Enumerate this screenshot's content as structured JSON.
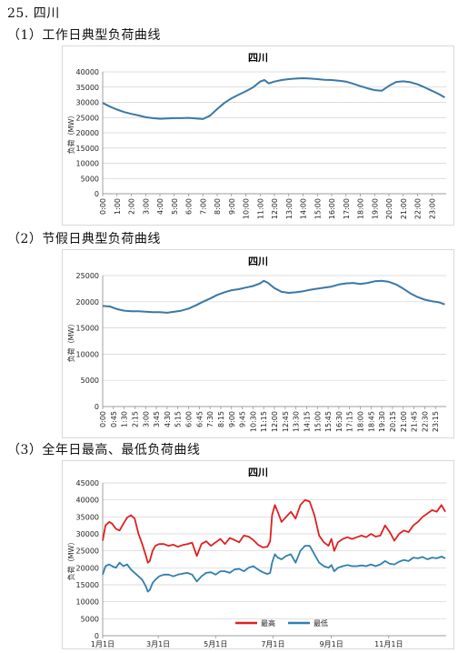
{
  "doc": {
    "section_title": "25.  四川",
    "sub1": "（1）工作日典型负荷曲线",
    "sub2": "（2）节假日典型负荷曲线",
    "sub3": "（3）全年日最高、最低负荷曲线"
  },
  "chart_data": [
    {
      "type": "line",
      "title": "四川",
      "ylabel": "负荷（MW）",
      "ylim": [
        0,
        40000
      ],
      "yticks": [
        0,
        5000,
        10000,
        15000,
        20000,
        25000,
        30000,
        35000,
        40000
      ],
      "categories": [
        "0:00",
        "1:00",
        "2:00",
        "3:00",
        "4:00",
        "5:00",
        "6:00",
        "7:00",
        "8:00",
        "9:00",
        "10:00",
        "11:00",
        "12:00",
        "13:00",
        "14:00",
        "15:00",
        "16:00",
        "17:00",
        "18:00",
        "19:00",
        "20:00",
        "21:00",
        "22:00",
        "23:00"
      ],
      "series": [
        {
          "color": "#3a78a8",
          "x": [
            0,
            0.5,
            1,
            1.5,
            2,
            2.5,
            3,
            3.5,
            4,
            4.5,
            5,
            5.5,
            6,
            6.5,
            7,
            7.5,
            8,
            8.5,
            9,
            9.5,
            10,
            10.5,
            11,
            11.3,
            11.6,
            12,
            12.5,
            13,
            13.5,
            14,
            14.5,
            15,
            15.5,
            16,
            16.5,
            17,
            17.5,
            18,
            18.5,
            19,
            19.5,
            20,
            20.5,
            21,
            21.5,
            22,
            22.5,
            23,
            23.5,
            23.9
          ],
          "values": [
            29800,
            28600,
            27600,
            26800,
            26200,
            25700,
            25100,
            24800,
            24600,
            24700,
            24800,
            24800,
            24900,
            24700,
            24500,
            25600,
            27800,
            29800,
            31300,
            32500,
            33600,
            34900,
            36800,
            37300,
            36200,
            36800,
            37300,
            37600,
            37800,
            37900,
            37800,
            37600,
            37400,
            37300,
            37100,
            36800,
            36100,
            35300,
            34600,
            34000,
            33800,
            35400,
            36700,
            36900,
            36600,
            35900,
            34900,
            33800,
            32700,
            31600
          ]
        }
      ]
    },
    {
      "type": "line",
      "title": "四川",
      "ylabel": "负荷（MW）",
      "ylim": [
        0,
        25000
      ],
      "yticks": [
        0,
        5000,
        10000,
        15000,
        20000,
        25000
      ],
      "categories": [
        "0:00",
        "0:45",
        "1:30",
        "2:15",
        "3:00",
        "3:45",
        "4:30",
        "5:15",
        "6:00",
        "6:45",
        "7:30",
        "8:15",
        "9:00",
        "9:45",
        "10:30",
        "11:15",
        "12:00",
        "12:45",
        "13:30",
        "14:15",
        "15:00",
        "15:45",
        "16:30",
        "17:15",
        "18:00",
        "18:45",
        "19:30",
        "20:15",
        "21:00",
        "21:45",
        "22:30",
        "23:15"
      ],
      "series": [
        {
          "color": "#3a78a8",
          "x": [
            0,
            0.5,
            1,
            1.5,
            2,
            2.5,
            3,
            3.5,
            4,
            4.5,
            5,
            5.5,
            6,
            6.5,
            7,
            7.5,
            8,
            8.5,
            9,
            9.5,
            10,
            10.5,
            11,
            11.25,
            11.5,
            12,
            12.5,
            13,
            13.5,
            14,
            14.5,
            15,
            15.5,
            16,
            16.5,
            17,
            17.5,
            18,
            18.5,
            19,
            19.5,
            20,
            20.5,
            21,
            21.5,
            22,
            22.5,
            23,
            23.5,
            23.9
          ],
          "values": [
            19200,
            19100,
            18600,
            18300,
            18200,
            18200,
            18100,
            18000,
            18000,
            17900,
            18100,
            18300,
            18700,
            19300,
            20000,
            20600,
            21300,
            21800,
            22200,
            22400,
            22700,
            23000,
            23500,
            24000,
            23700,
            22600,
            21900,
            21700,
            21800,
            22000,
            22300,
            22500,
            22700,
            22900,
            23300,
            23500,
            23600,
            23400,
            23600,
            23900,
            24000,
            23800,
            23300,
            22500,
            21600,
            20900,
            20400,
            20100,
            19900,
            19500
          ]
        }
      ]
    },
    {
      "type": "line",
      "title": "四川",
      "ylabel": "负荷（MW）",
      "ylim": [
        0,
        45000
      ],
      "yticks": [
        0,
        5000,
        10000,
        15000,
        20000,
        25000,
        30000,
        35000,
        40000,
        45000
      ],
      "categories": [
        "1月1日",
        "3月1日",
        "5月1日",
        "7月1日",
        "9月1日",
        "11月1日"
      ],
      "legend_position": "bottom",
      "series": [
        {
          "name": "最高",
          "color": "#e02020",
          "x": [
            0,
            3,
            7,
            10,
            14,
            18,
            22,
            26,
            30,
            34,
            38,
            42,
            46,
            48,
            50,
            53,
            56,
            60,
            65,
            70,
            75,
            80,
            85,
            90,
            95,
            100,
            105,
            110,
            115,
            120,
            125,
            130,
            135,
            140,
            145,
            150,
            155,
            160,
            165,
            170,
            175,
            178,
            180,
            183,
            186,
            190,
            195,
            200,
            205,
            210,
            215,
            220,
            225,
            230,
            235,
            240,
            243,
            246,
            250,
            255,
            260,
            265,
            270,
            275,
            280,
            285,
            290,
            295,
            300,
            305,
            310,
            315,
            320,
            325,
            330,
            335,
            340,
            345,
            350,
            355,
            360,
            364
          ],
          "values": [
            28000,
            32500,
            33500,
            33000,
            31500,
            31000,
            33000,
            34800,
            35500,
            34500,
            30000,
            27000,
            23500,
            21500,
            22000,
            25000,
            26500,
            27000,
            27000,
            26500,
            26800,
            26200,
            26700,
            27000,
            27400,
            23500,
            27000,
            27800,
            26500,
            27500,
            28500,
            27000,
            28800,
            28200,
            27500,
            29500,
            29200,
            28200,
            26800,
            26000,
            26200,
            27800,
            35500,
            38500,
            36500,
            33500,
            35000,
            36500,
            34500,
            38500,
            40000,
            39500,
            35500,
            29500,
            27500,
            26500,
            28500,
            25000,
            27500,
            28500,
            29000,
            28500,
            29000,
            29500,
            29000,
            30000,
            29200,
            29500,
            32500,
            30500,
            28000,
            30000,
            31000,
            30500,
            32500,
            33500,
            35000,
            36000,
            37000,
            36500,
            38500,
            36500
          ]
        },
        {
          "name": "最低",
          "color": "#2f7fb0",
          "x": [
            0,
            3,
            7,
            10,
            14,
            18,
            22,
            26,
            30,
            34,
            38,
            42,
            46,
            48,
            50,
            53,
            56,
            60,
            65,
            70,
            75,
            80,
            85,
            90,
            95,
            100,
            105,
            110,
            115,
            120,
            125,
            130,
            135,
            140,
            145,
            150,
            155,
            160,
            165,
            170,
            175,
            178,
            180,
            183,
            186,
            190,
            195,
            200,
            205,
            210,
            215,
            220,
            225,
            230,
            235,
            240,
            243,
            246,
            250,
            255,
            260,
            265,
            270,
            275,
            280,
            285,
            290,
            295,
            300,
            305,
            310,
            315,
            320,
            325,
            330,
            335,
            340,
            345,
            350,
            355,
            360,
            364
          ],
          "values": [
            18000,
            20500,
            21000,
            20500,
            20000,
            21500,
            20500,
            21000,
            19500,
            18500,
            17500,
            16500,
            14500,
            13000,
            13500,
            15500,
            16500,
            17500,
            18000,
            18000,
            17500,
            18000,
            18300,
            18500,
            18000,
            16000,
            17500,
            18500,
            18700,
            18000,
            19000,
            19000,
            18500,
            19500,
            19700,
            19000,
            20000,
            20500,
            19500,
            18700,
            18200,
            18500,
            21500,
            24000,
            23000,
            22500,
            23500,
            24000,
            21500,
            25000,
            26500,
            26500,
            24000,
            21500,
            20500,
            20000,
            20800,
            19000,
            20000,
            20500,
            20800,
            20500,
            20500,
            20700,
            20500,
            21000,
            20500,
            21000,
            22000,
            21200,
            21000,
            21800,
            22300,
            22000,
            23000,
            22800,
            23200,
            22500,
            23000,
            22800,
            23300,
            22800
          ]
        }
      ]
    }
  ]
}
